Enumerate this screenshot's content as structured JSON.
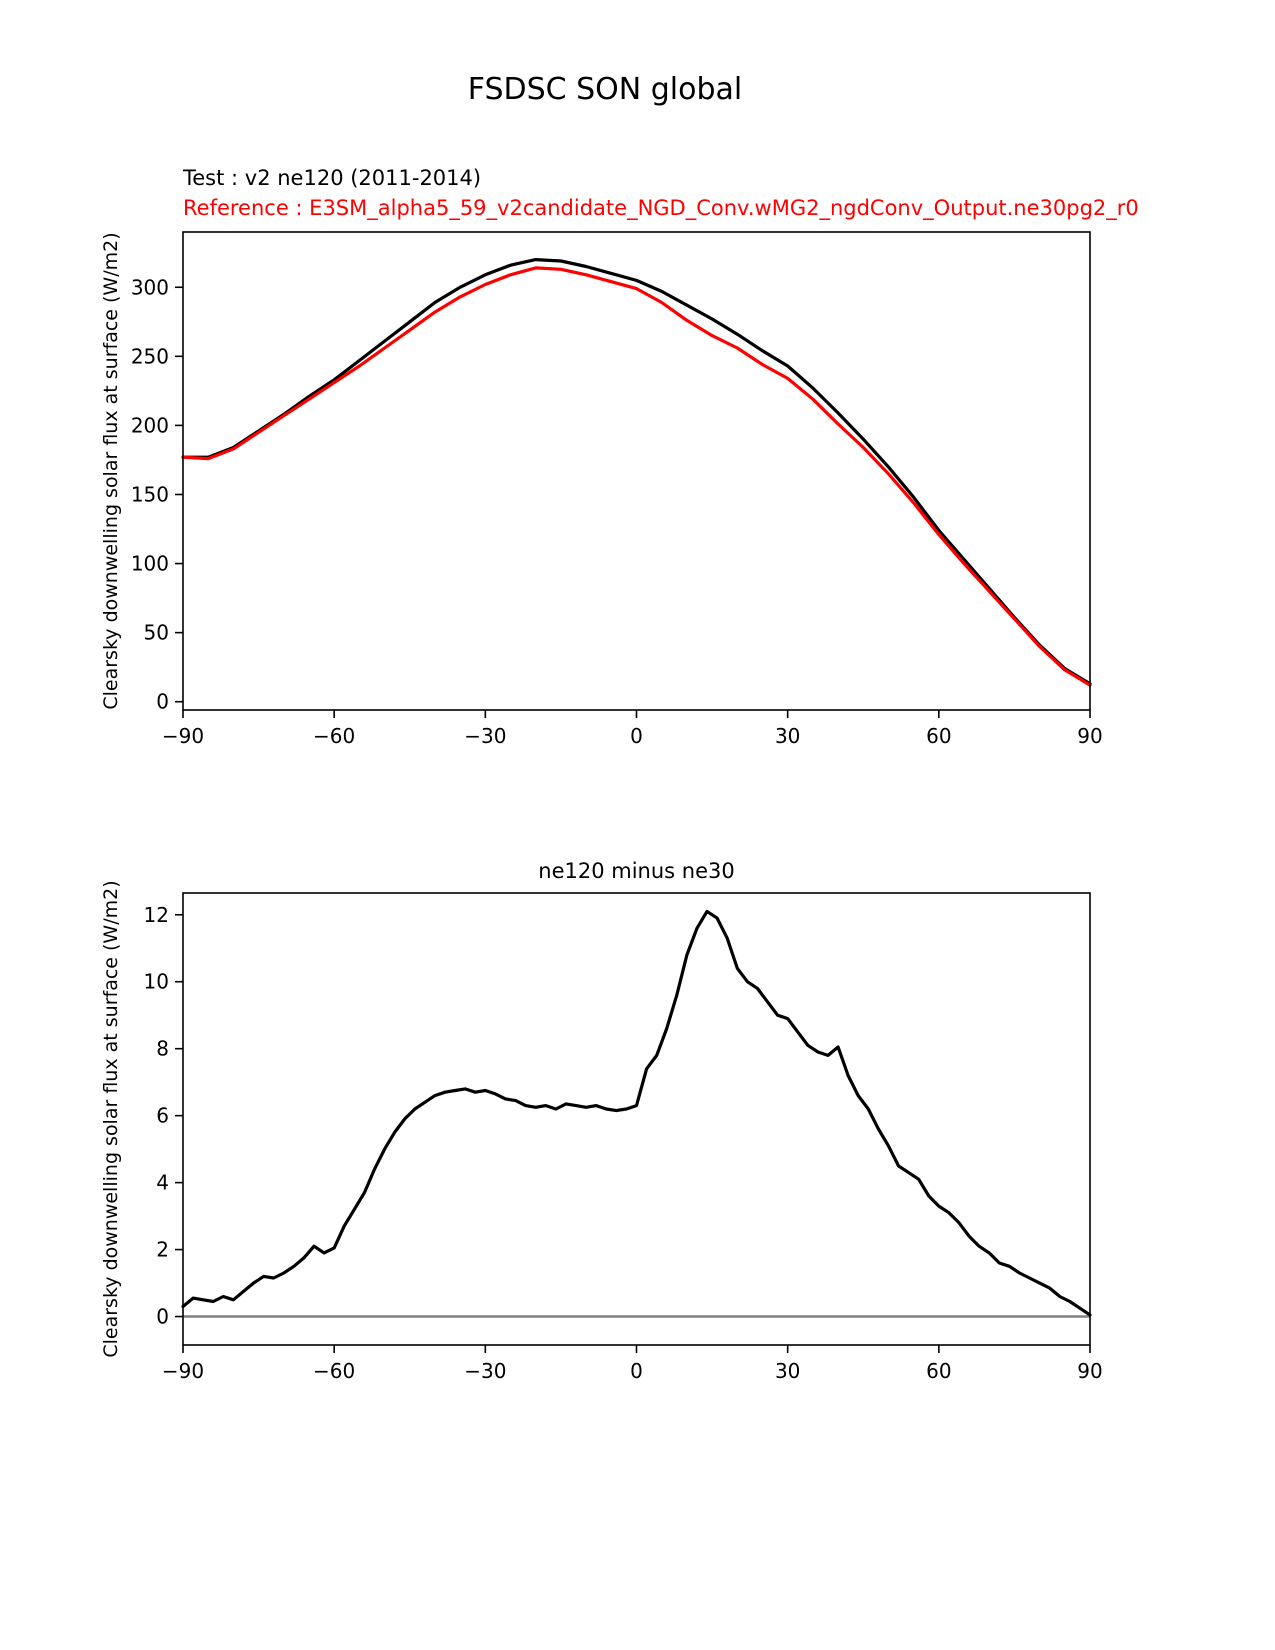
{
  "page": {
    "title": "FSDSC SON global"
  },
  "top_panel": {
    "test_label": "Test : v2 ne120 (2011-2014)",
    "reference_label": "Reference : E3SM_alpha5_59_v2candidate_NGD_Conv.wMG2_ngdConv_Output.ne30pg2_r0",
    "ylabel": "Clearsky downwelling solar flux at surface (W/m2)"
  },
  "bottom_panel": {
    "title": "ne120 minus ne30",
    "ylabel": "Clearsky downwelling solar flux at surface (W/m2)"
  },
  "colors": {
    "test_line": "#000000",
    "reference_line": "#ff0000",
    "zero_line": "#808080",
    "axis": "#000000"
  },
  "chart_data": [
    {
      "type": "line",
      "title": "FSDSC SON global",
      "xlabel": "",
      "ylabel": "Clearsky downwelling solar flux at surface (W/m2)",
      "xlim": [
        -90,
        90
      ],
      "ylim": [
        -6,
        340
      ],
      "xticks": [
        -90,
        -60,
        -30,
        0,
        30,
        60,
        90
      ],
      "yticks": [
        0,
        50,
        100,
        150,
        200,
        250,
        300
      ],
      "grid": false,
      "legend_position": "above-left",
      "x": [
        -90,
        -85,
        -80,
        -75,
        -70,
        -65,
        -60,
        -55,
        -50,
        -45,
        -40,
        -35,
        -30,
        -25,
        -20,
        -15,
        -10,
        -5,
        0,
        5,
        10,
        15,
        20,
        25,
        30,
        35,
        40,
        45,
        50,
        55,
        60,
        65,
        70,
        75,
        80,
        85,
        90
      ],
      "series": [
        {
          "name": "Test : v2 ne120 (2011-2014)",
          "color": "#000000",
          "values": [
            177,
            177,
            184,
            196,
            208,
            221,
            233,
            247,
            261,
            275,
            289,
            300,
            309,
            316,
            320,
            319,
            315,
            310,
            305,
            297,
            287,
            277,
            266,
            254,
            243,
            227,
            209,
            190,
            170,
            148,
            124,
            103,
            82,
            61,
            41,
            24,
            13
          ]
        },
        {
          "name": "Reference : E3SM_alpha5_59_v2candidate_NGD_Conv.wMG2_ngdConv_Output.ne30pg2_r0",
          "color": "#ff0000",
          "values": [
            177,
            176,
            183,
            195,
            207,
            219,
            231,
            243,
            256,
            269,
            282,
            293,
            302,
            309,
            314,
            313,
            309,
            304,
            299,
            289,
            276,
            265,
            256,
            244,
            234,
            219,
            201,
            184,
            165,
            144,
            121,
            100,
            80,
            60,
            40,
            23,
            12
          ]
        }
      ]
    },
    {
      "type": "line",
      "title": "ne120 minus ne30",
      "xlabel": "",
      "ylabel": "Clearsky downwelling solar flux at surface (W/m2)",
      "xlim": [
        -90,
        90
      ],
      "ylim": [
        -0.85,
        12.65
      ],
      "xticks": [
        -90,
        -60,
        -30,
        0,
        30,
        60,
        90
      ],
      "yticks": [
        0,
        2,
        4,
        6,
        8,
        10,
        12
      ],
      "grid": false,
      "zero_line": true,
      "x": [
        -90,
        -88,
        -86,
        -84,
        -82,
        -80,
        -78,
        -76,
        -74,
        -72,
        -70,
        -68,
        -66,
        -64,
        -62,
        -60,
        -58,
        -56,
        -54,
        -52,
        -50,
        -48,
        -46,
        -44,
        -42,
        -40,
        -38,
        -36,
        -34,
        -32,
        -30,
        -28,
        -26,
        -24,
        -22,
        -20,
        -18,
        -16,
        -14,
        -12,
        -10,
        -8,
        -6,
        -4,
        -2,
        0,
        2,
        4,
        6,
        8,
        10,
        12,
        14,
        16,
        18,
        20,
        22,
        24,
        26,
        28,
        30,
        32,
        34,
        36,
        38,
        40,
        42,
        44,
        46,
        48,
        50,
        52,
        54,
        56,
        58,
        60,
        62,
        64,
        66,
        68,
        70,
        72,
        74,
        76,
        78,
        80,
        82,
        84,
        86,
        88,
        90
      ],
      "series": [
        {
          "name": "ne120 minus ne30",
          "color": "#000000",
          "values": [
            0.3,
            0.55,
            0.5,
            0.45,
            0.6,
            0.5,
            0.75,
            1.0,
            1.2,
            1.15,
            1.3,
            1.5,
            1.75,
            2.1,
            1.9,
            2.05,
            2.7,
            3.2,
            3.7,
            4.4,
            5.0,
            5.5,
            5.9,
            6.2,
            6.4,
            6.6,
            6.7,
            6.75,
            6.8,
            6.7,
            6.75,
            6.65,
            6.5,
            6.45,
            6.3,
            6.25,
            6.3,
            6.2,
            6.35,
            6.3,
            6.25,
            6.3,
            6.2,
            6.15,
            6.2,
            6.3,
            7.4,
            7.8,
            8.6,
            9.6,
            10.8,
            11.6,
            12.1,
            11.9,
            11.3,
            10.4,
            10.0,
            9.8,
            9.4,
            9.0,
            8.9,
            8.5,
            8.1,
            7.9,
            7.8,
            8.05,
            7.2,
            6.6,
            6.2,
            5.6,
            5.1,
            4.5,
            4.3,
            4.1,
            3.6,
            3.3,
            3.1,
            2.8,
            2.4,
            2.1,
            1.9,
            1.6,
            1.5,
            1.3,
            1.15,
            1.0,
            0.85,
            0.6,
            0.45,
            0.25,
            0.05
          ]
        }
      ]
    }
  ]
}
